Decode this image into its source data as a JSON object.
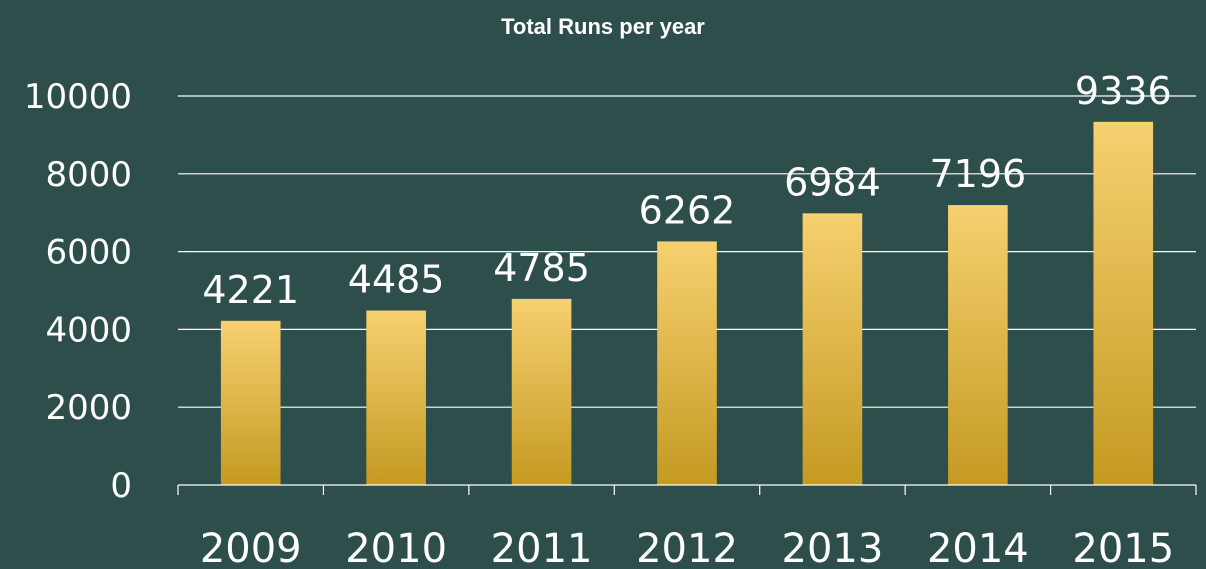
{
  "chart_data": {
    "type": "bar",
    "title": "Total Runs per year",
    "xlabel": "",
    "ylabel": "",
    "categories": [
      "2009",
      "2010",
      "2011",
      "2012",
      "2013",
      "2014",
      "2015"
    ],
    "values": [
      4221,
      4485,
      4785,
      6262,
      6984,
      7196,
      9336
    ],
    "data_labels": [
      "4221",
      "4485",
      "4785",
      "6262",
      "6984",
      "7196",
      "9336"
    ],
    "ylim": [
      0,
      10000
    ],
    "yticks": [
      0,
      2000,
      4000,
      6000,
      8000,
      10000
    ],
    "ytick_labels": [
      "0",
      "2000",
      "4000",
      "6000",
      "8000",
      "10000"
    ],
    "grid": true,
    "legend": "none",
    "colors": {
      "background": "#2e4e4c",
      "bar_top": "#f7d070",
      "bar_bottom": "#c49a22",
      "gridline": "#ffffff",
      "text": "#ffffff"
    }
  }
}
